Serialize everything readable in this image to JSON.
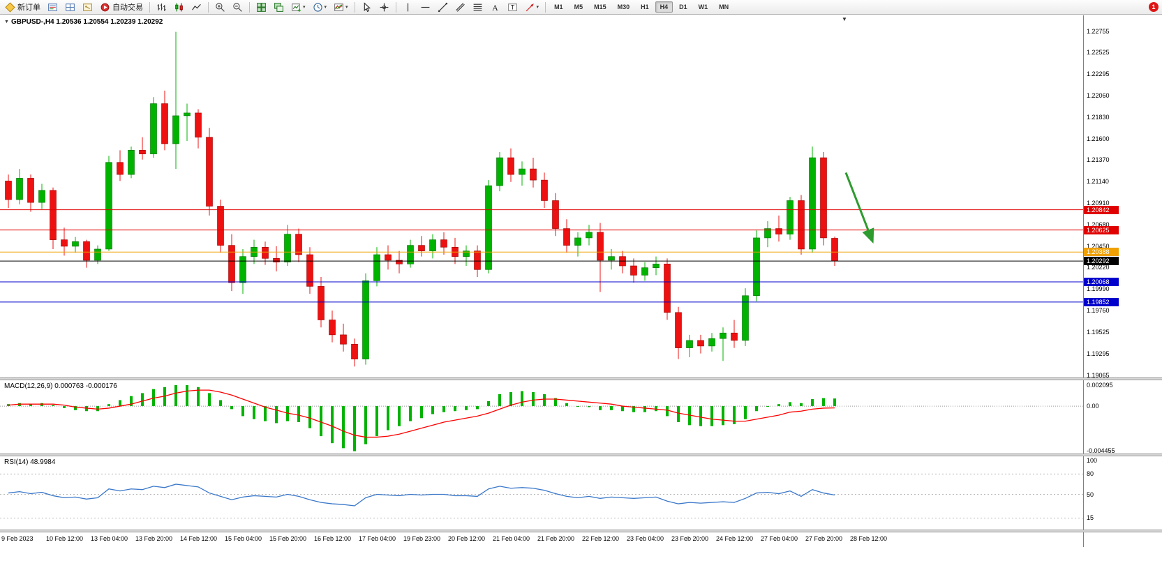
{
  "toolbar": {
    "new_order_label": "新订单",
    "autotrading_label": "自动交易",
    "notification_badge": "1",
    "active_timeframe": "H4",
    "items": [
      {
        "kind": "button",
        "name": "new-order-button",
        "icon": "new-order-icon",
        "label": "新订单"
      },
      {
        "kind": "icon",
        "name": "market-watch-button",
        "icon": "market-watch-icon"
      },
      {
        "kind": "icon",
        "name": "data-window-button",
        "icon": "data-window-icon"
      },
      {
        "kind": "icon",
        "name": "navigator-button",
        "icon": "navigator-icon"
      },
      {
        "kind": "button",
        "name": "autotrading-button",
        "icon": "autotrading-icon",
        "label": "自动交易"
      },
      {
        "kind": "sep"
      },
      {
        "kind": "icon",
        "name": "bar-chart-button",
        "icon": "bar-chart-icon"
      },
      {
        "kind": "icon",
        "name": "candlestick-chart-button",
        "icon": "candlestick-icon"
      },
      {
        "kind": "icon",
        "name": "line-chart-button",
        "icon": "line-chart-icon"
      },
      {
        "kind": "sep"
      },
      {
        "kind": "icon",
        "name": "zoom-in-button",
        "icon": "zoom-in-icon"
      },
      {
        "kind": "icon",
        "name": "zoom-out-button",
        "icon": "zoom-out-icon"
      },
      {
        "kind": "sep"
      },
      {
        "kind": "icon",
        "name": "tile-windows-button",
        "icon": "tile-windows-icon"
      },
      {
        "kind": "icon",
        "name": "cascade-windows-button",
        "icon": "cascade-windows-icon"
      },
      {
        "kind": "dropdown",
        "name": "new-chart-button",
        "icon": "new-chart-icon"
      },
      {
        "kind": "dropdown",
        "name": "periods-button",
        "icon": "clock-icon"
      },
      {
        "kind": "dropdown",
        "name": "indicators-button",
        "icon": "indicators-icon"
      },
      {
        "kind": "sep"
      },
      {
        "kind": "icon",
        "name": "cursor-button",
        "icon": "cursor-icon"
      },
      {
        "kind": "icon",
        "name": "crosshair-button",
        "icon": "crosshair-icon"
      },
      {
        "kind": "sep"
      },
      {
        "kind": "icon",
        "name": "vertical-line-button",
        "icon": "vline-icon"
      },
      {
        "kind": "icon",
        "name": "horizontal-line-button",
        "icon": "hline-icon"
      },
      {
        "kind": "icon",
        "name": "trendline-button",
        "icon": "trendline-icon"
      },
      {
        "kind": "icon",
        "name": "channel-button",
        "icon": "channel-icon"
      },
      {
        "kind": "icon",
        "name": "fibonacci-button",
        "icon": "fibonacci-icon"
      },
      {
        "kind": "icon",
        "name": "text-tool-button",
        "icon": "text-icon"
      },
      {
        "kind": "icon",
        "name": "label-tool-button",
        "icon": "label-icon"
      },
      {
        "kind": "dropdown",
        "name": "arrows-button",
        "icon": "arrow-shape-icon"
      },
      {
        "kind": "sep"
      },
      {
        "kind": "tf",
        "label": "M1"
      },
      {
        "kind": "tf",
        "label": "M5"
      },
      {
        "kind": "tf",
        "label": "M15"
      },
      {
        "kind": "tf",
        "label": "M30"
      },
      {
        "kind": "tf",
        "label": "H1"
      },
      {
        "kind": "tf",
        "label": "H4",
        "active": true
      },
      {
        "kind": "tf",
        "label": "D1"
      },
      {
        "kind": "tf",
        "label": "W1"
      },
      {
        "kind": "tf",
        "label": "MN"
      }
    ]
  },
  "chart": {
    "title": "GBPUSD-,H4 1.20536 1.20554 1.20239 1.20292",
    "macd_label": "MACD(12,26,9) 0.000763 -0.000176",
    "rsi_label": "RSI(14) 48.9984",
    "collapse_icon": "▼",
    "shift_marker": "▼"
  },
  "colors": {
    "candle_up": "#00b300",
    "candle_up_stroke": "#007000",
    "candle_down": "#ee1111",
    "candle_down_stroke": "#990000",
    "resistance_line": "#e00000",
    "level_line": "#f0a000",
    "current_price_line": "#000000",
    "support_line": "#0000cc",
    "macd_histogram": "#00b300",
    "macd_signal": "#ff0000",
    "rsi_line": "#3977c9",
    "arrow_annotation": "#2e9b2e"
  },
  "chart_data": [
    {
      "type": "candlestick",
      "symbol": "GBPUSD-",
      "timeframe": "H4",
      "current": {
        "open": 1.20536,
        "high": 1.20554,
        "low": 1.20239,
        "close": 1.20292
      },
      "ylim": [
        1.19065,
        1.22755
      ],
      "y_axis_labels": [
        "1.22755",
        "1.22525",
        "1.22295",
        "1.22060",
        "1.21830",
        "1.21600",
        "1.21370",
        "1.21140",
        "1.20910",
        "1.20680",
        "1.20450",
        "1.20220",
        "1.19990",
        "1.19760",
        "1.19525",
        "1.19295",
        "1.19065"
      ],
      "x_labels": [
        "9 Feb 2023",
        "10 Feb 12:00",
        "13 Feb 04:00",
        "13 Feb 20:00",
        "14 Feb 12:00",
        "15 Feb 04:00",
        "15 Feb 20:00",
        "16 Feb 12:00",
        "17 Feb 04:00",
        "19 Feb 23:00",
        "20 Feb 12:00",
        "21 Feb 04:00",
        "21 Feb 20:00",
        "22 Feb 12:00",
        "23 Feb 04:00",
        "23 Feb 20:00",
        "24 Feb 12:00",
        "27 Feb 04:00",
        "27 Feb 20:00",
        "28 Feb 12:00"
      ],
      "candles": [
        [
          1.2115,
          1.2122,
          1.2086,
          1.2095
        ],
        [
          1.2095,
          1.2128,
          1.209,
          1.2118
        ],
        [
          1.2118,
          1.2122,
          1.2082,
          1.2092
        ],
        [
          1.2092,
          1.2112,
          1.2085,
          1.2105
        ],
        [
          1.2105,
          1.2108,
          1.2042,
          1.2052
        ],
        [
          1.2052,
          1.2065,
          1.2035,
          1.2045
        ],
        [
          1.2045,
          1.2055,
          1.2038,
          1.205
        ],
        [
          1.205,
          1.2052,
          1.2022,
          1.203
        ],
        [
          1.203,
          1.2046,
          1.2026,
          1.2042
        ],
        [
          1.2042,
          1.2142,
          1.204,
          1.2135
        ],
        [
          1.2135,
          1.2148,
          1.2115,
          1.2122
        ],
        [
          1.2122,
          1.2152,
          1.2118,
          1.2148
        ],
        [
          1.2148,
          1.2162,
          1.2138,
          1.2144
        ],
        [
          1.2144,
          1.2205,
          1.214,
          1.2198
        ],
        [
          1.2198,
          1.2212,
          1.2148,
          1.2155
        ],
        [
          1.2155,
          1.2275,
          1.2128,
          1.2185
        ],
        [
          1.2185,
          1.2198,
          1.2158,
          1.2188
        ],
        [
          1.2188,
          1.2192,
          1.215,
          1.2162
        ],
        [
          1.2162,
          1.2172,
          1.2078,
          1.2088
        ],
        [
          1.2088,
          1.2095,
          1.2038,
          1.2046
        ],
        [
          1.2046,
          1.2058,
          1.1997,
          1.2006
        ],
        [
          1.2006,
          1.2042,
          1.1994,
          1.2034
        ],
        [
          1.2034,
          1.2052,
          1.2026,
          1.2044
        ],
        [
          1.2044,
          1.205,
          1.2025,
          1.2032
        ],
        [
          1.2032,
          1.2045,
          1.2018,
          1.2028
        ],
        [
          1.2028,
          1.2068,
          1.2024,
          1.2058
        ],
        [
          1.2058,
          1.2064,
          1.2028,
          1.2036
        ],
        [
          1.2036,
          1.2044,
          1.1994,
          1.2002
        ],
        [
          1.2002,
          1.2012,
          1.1958,
          1.1966
        ],
        [
          1.1966,
          1.1976,
          1.1942,
          1.195
        ],
        [
          1.195,
          1.1962,
          1.1932,
          1.194
        ],
        [
          1.194,
          1.1946,
          1.1916,
          1.1924
        ],
        [
          1.1924,
          1.2016,
          1.1918,
          1.2008
        ],
        [
          1.2008,
          1.2044,
          1.2002,
          1.2036
        ],
        [
          1.2036,
          1.2046,
          1.202,
          1.203
        ],
        [
          1.203,
          1.204,
          1.2016,
          1.2026
        ],
        [
          1.2026,
          1.2052,
          1.2022,
          1.2046
        ],
        [
          1.2046,
          1.2056,
          1.2034,
          1.204
        ],
        [
          1.204,
          1.2058,
          1.2032,
          1.2052
        ],
        [
          1.2052,
          1.206,
          1.2036,
          1.2044
        ],
        [
          1.2044,
          1.2054,
          1.2026,
          1.2034
        ],
        [
          1.2034,
          1.2046,
          1.2024,
          1.204
        ],
        [
          1.204,
          1.2046,
          1.2012,
          1.202
        ],
        [
          1.202,
          1.2116,
          1.2016,
          1.211
        ],
        [
          1.211,
          1.2146,
          1.2104,
          1.214
        ],
        [
          1.214,
          1.215,
          1.2114,
          1.2122
        ],
        [
          1.2122,
          1.2136,
          1.211,
          1.2128
        ],
        [
          1.2128,
          1.214,
          1.2108,
          1.2116
        ],
        [
          1.2116,
          1.2124,
          1.2086,
          1.2094
        ],
        [
          1.2094,
          1.2102,
          1.2056,
          1.2064
        ],
        [
          1.2064,
          1.2074,
          1.2038,
          1.2046
        ],
        [
          1.2046,
          1.206,
          1.2034,
          1.2054
        ],
        [
          1.2054,
          1.2068,
          1.2046,
          1.206
        ],
        [
          1.206,
          1.207,
          1.1996,
          1.203
        ],
        [
          1.203,
          1.2042,
          1.202,
          1.2034
        ],
        [
          1.2034,
          1.204,
          1.2016,
          1.2024
        ],
        [
          1.2024,
          1.2032,
          1.2006,
          1.2014
        ],
        [
          1.2014,
          1.2028,
          1.2008,
          1.2022
        ],
        [
          1.2022,
          1.2034,
          1.2014,
          1.2026
        ],
        [
          1.2026,
          1.2032,
          1.1966,
          1.1974
        ],
        [
          1.1974,
          1.198,
          1.1924,
          1.1936
        ],
        [
          1.1936,
          1.195,
          1.1926,
          1.1944
        ],
        [
          1.1944,
          1.195,
          1.193,
          1.1938
        ],
        [
          1.1938,
          1.1952,
          1.1932,
          1.1946
        ],
        [
          1.1946,
          1.1958,
          1.1922,
          1.1952
        ],
        [
          1.1952,
          1.1966,
          1.1936,
          1.1944
        ],
        [
          1.1944,
          1.2,
          1.1938,
          1.1992
        ],
        [
          1.1992,
          1.2062,
          1.1986,
          1.2054
        ],
        [
          1.2054,
          1.2072,
          1.2044,
          1.2064
        ],
        [
          1.2064,
          1.2078,
          1.205,
          1.2058
        ],
        [
          1.2058,
          1.2098,
          1.2052,
          1.2094
        ],
        [
          1.2094,
          1.21,
          1.2036,
          1.2042
        ],
        [
          1.2042,
          1.2152,
          1.2038,
          1.214
        ],
        [
          1.214,
          1.2146,
          1.2046,
          1.2054
        ],
        [
          1.20536,
          1.20554,
          1.20239,
          1.20292
        ]
      ],
      "hlines": [
        {
          "price": 1.20842,
          "label": "1.20842",
          "kind": "resistance"
        },
        {
          "price": 1.20625,
          "label": "1.20625",
          "kind": "resistance"
        },
        {
          "price": 1.20388,
          "label": "1.20388",
          "kind": "level"
        },
        {
          "price": 1.20292,
          "label": "1.20292",
          "kind": "current-price"
        },
        {
          "price": 1.20068,
          "label": "1.20068",
          "kind": "support"
        },
        {
          "price": 1.19852,
          "label": "1.19852",
          "kind": "support"
        }
      ],
      "annotation_arrow": {
        "from": {
          "index": 75.0,
          "price": 1.2124
        },
        "to": {
          "index": 77.4,
          "price": 1.205
        }
      }
    },
    {
      "type": "macd",
      "label": "MACD(12,26,9)",
      "current_values": {
        "macd": 0.000763,
        "signal": -0.000176
      },
      "ylim": [
        -0.004455,
        0.002095
      ],
      "y_axis_labels": [
        "0.002095",
        "0.00",
        "-0.004455"
      ],
      "histogram": [
        0.0002,
        0.0003,
        0.0002,
        0.0003,
        0.0001,
        -0.0002,
        -0.0004,
        -0.0005,
        -0.0005,
        0.0002,
        0.0006,
        0.001,
        0.0013,
        0.0017,
        0.0019,
        0.0021,
        0.0021,
        0.0019,
        0.0013,
        0.0006,
        -0.0003,
        -0.001,
        -0.0013,
        -0.0015,
        -0.0017,
        -0.0015,
        -0.0016,
        -0.0022,
        -0.003,
        -0.0037,
        -0.0042,
        -0.0045,
        -0.0038,
        -0.003,
        -0.0024,
        -0.002,
        -0.0015,
        -0.0012,
        -0.0008,
        -0.0006,
        -0.0005,
        -0.0004,
        -0.0003,
        0.0005,
        0.0012,
        0.0014,
        0.0015,
        0.0014,
        0.0012,
        0.0008,
        0.0003,
        0.0,
        -0.0001,
        -0.0004,
        -0.0004,
        -0.0005,
        -0.0006,
        -0.0006,
        -0.0005,
        -0.001,
        -0.0016,
        -0.0019,
        -0.002,
        -0.002,
        -0.0019,
        -0.0018,
        -0.0013,
        -0.0005,
        0.0,
        0.0002,
        0.0004,
        0.0003,
        0.0007,
        0.0008,
        0.000763
      ],
      "signal_line": [
        0.0001,
        0.0002,
        0.0002,
        0.0002,
        0.0002,
        0.0001,
        -0.0001,
        -0.0002,
        -0.0003,
        -0.0002,
        0.0,
        0.0002,
        0.0005,
        0.0008,
        0.001,
        0.0013,
        0.0015,
        0.0016,
        0.0016,
        0.0014,
        0.0011,
        0.0007,
        0.0003,
        -0.0001,
        -0.0004,
        -0.0007,
        -0.0009,
        -0.0012,
        -0.0016,
        -0.002,
        -0.0025,
        -0.0029,
        -0.0031,
        -0.0031,
        -0.003,
        -0.0028,
        -0.0025,
        -0.0022,
        -0.0019,
        -0.0016,
        -0.0014,
        -0.0012,
        -0.001,
        -0.0007,
        -0.0003,
        0.0001,
        0.0004,
        0.0006,
        0.0007,
        0.0007,
        0.0006,
        0.0005,
        0.0004,
        0.0003,
        0.0002,
        0.0,
        -0.0001,
        -0.0002,
        -0.0003,
        -0.0004,
        -0.0007,
        -0.0009,
        -0.0011,
        -0.0013,
        -0.0014,
        -0.0015,
        -0.0015,
        -0.0013,
        -0.0011,
        -0.0009,
        -0.0006,
        -0.0005,
        -0.0003,
        -0.0002,
        -0.000176
      ]
    },
    {
      "type": "rsi",
      "label": "RSI(14)",
      "current_value": 48.9984,
      "ylim": [
        0,
        100
      ],
      "levels": [
        80,
        50,
        15
      ],
      "y_axis_labels": [
        "100",
        "80",
        "50",
        "15"
      ],
      "values": [
        52,
        54,
        51,
        53,
        48,
        45,
        46,
        43,
        45,
        58,
        55,
        58,
        57,
        62,
        60,
        65,
        63,
        61,
        52,
        47,
        42,
        46,
        48,
        47,
        46,
        50,
        47,
        42,
        38,
        36,
        35,
        33,
        45,
        50,
        49,
        48,
        50,
        49,
        50,
        50,
        48,
        48,
        47,
        58,
        62,
        59,
        60,
        59,
        56,
        51,
        47,
        45,
        47,
        44,
        46,
        45,
        44,
        45,
        46,
        40,
        36,
        38,
        37,
        38,
        39,
        38,
        44,
        52,
        53,
        51,
        55,
        47,
        57,
        52,
        48.9984
      ]
    }
  ]
}
